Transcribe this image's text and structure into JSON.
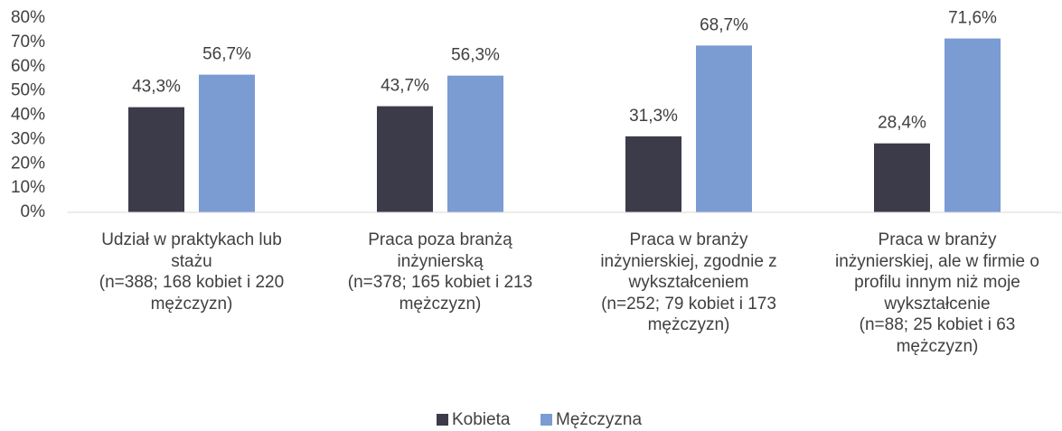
{
  "chart_data": {
    "type": "bar",
    "categories": [
      "Udział w praktykach lub\nstażu\n(n=388; 168 kobiet i 220\nmężczyzn)",
      "Praca poza branżą\ninżynierską\n(n=378; 165 kobiet i 213\nmężczyzn)",
      "Praca w branży\ninżynierskiej, zgodnie z\nwykształceniem\n(n=252; 79 kobiet i 173\nmężczyzn)",
      "Praca w branży\ninżynierskiej, ale w firmie o\nprofilu innym niż moje\nwykształcenie\n(n=88; 25 kobiet i 63\nmężczyzn)"
    ],
    "series": [
      {
        "name": "Kobieta",
        "color": "#3b3b4a",
        "values": [
          43.3,
          43.7,
          31.3,
          28.4
        ],
        "value_labels": [
          "43,3%",
          "43,7%",
          "31,3%",
          "28,4%"
        ]
      },
      {
        "name": "Mężczyzna",
        "color": "#7b9bd3",
        "values": [
          56.7,
          56.3,
          68.7,
          71.6
        ],
        "value_labels": [
          "56,7%",
          "56,3%",
          "68,7%",
          "71,6%"
        ]
      }
    ],
    "ylim": [
      0,
      80
    ],
    "yticks": [
      {
        "value": 0,
        "label": "0%"
      },
      {
        "value": 10,
        "label": "10%"
      },
      {
        "value": 20,
        "label": "20%"
      },
      {
        "value": 30,
        "label": "30%"
      },
      {
        "value": 40,
        "label": "40%"
      },
      {
        "value": 50,
        "label": "50%"
      },
      {
        "value": 60,
        "label": "60%"
      },
      {
        "value": 70,
        "label": "70%"
      },
      {
        "value": 80,
        "label": "80%"
      }
    ],
    "legend": "bottom"
  }
}
